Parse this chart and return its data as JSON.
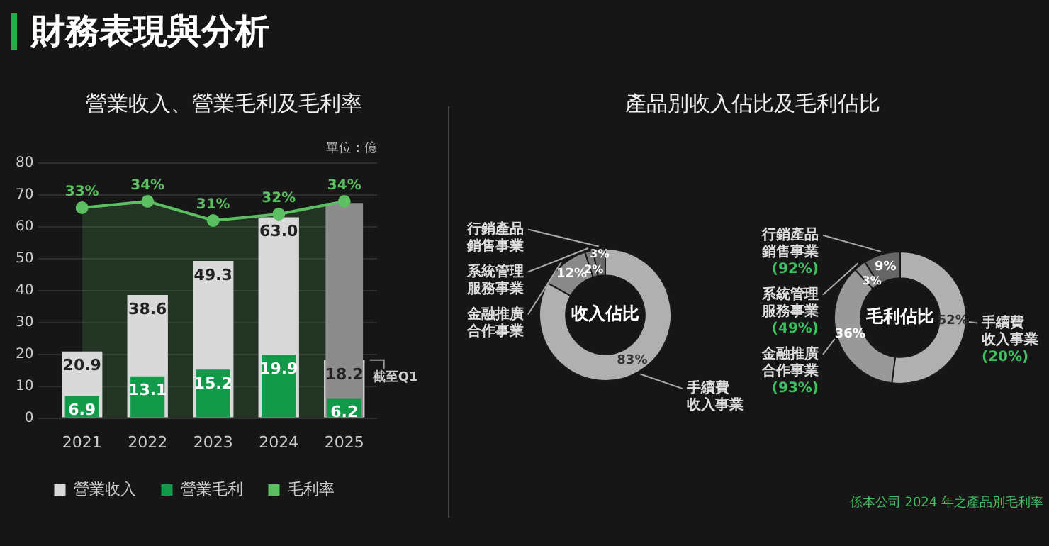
{
  "chart_data": [
    {
      "type": "other",
      "title": "財務表現與分析"
    },
    {
      "type": "bar",
      "title": "營業收入、營業毛利及毛利率",
      "categories": [
        "2021",
        "2022",
        "2023",
        "2024",
        "2025"
      ],
      "ylim": [
        0,
        80
      ],
      "yticks": [
        0,
        10,
        20,
        30,
        40,
        50,
        60,
        70,
        80
      ],
      "y2lim": [
        0,
        40
      ],
      "grid": "y",
      "legend": "bottom",
      "marker": "circle",
      "annotations": [
        "單位：億",
        {
          "text": "截至Q1",
          "x": "2025",
          "y": 18.2
        }
      ],
      "series": [
        {
          "name": "營業收入",
          "color": "#d9d9d9",
          "values": [
            20.9,
            38.6,
            49.3,
            63.0,
            18.2
          ],
          "value_labels": [
            "20.9",
            "38.6",
            "49.3",
            "63.0",
            "18.2"
          ]
        },
        {
          "color": "#8c8c8c",
          "values": [
            null,
            null,
            null,
            null,
            67.5
          ]
        },
        {
          "name": "營業毛利",
          "color": "#12994a",
          "values": [
            6.9,
            13.1,
            15.2,
            19.9,
            6.2
          ],
          "value_labels": [
            "6.9",
            "13.1",
            "15.2",
            "19.9",
            "6.2"
          ]
        },
        {
          "name": "毛利率",
          "type": "area",
          "axis": "y2",
          "color": "#5cbf62",
          "values": [
            33,
            34,
            31,
            32,
            34
          ],
          "value_labels": [
            "33%",
            "34%",
            "31%",
            "32%",
            "34%"
          ]
        }
      ]
    },
    {
      "type": "donut",
      "title": "產品別收入佔比及毛利佔比",
      "categories": [
        "手續費收入事業",
        "金融推廣合作事業",
        "系統管理服務事業",
        "行銷產品銷售事業"
      ],
      "values": [
        83,
        12,
        2,
        3
      ],
      "colors": [
        "#b0b0b0",
        "#8a8a8a",
        "#777777",
        "#666666"
      ],
      "value_labels": [
        "83%",
        "12%",
        "2%",
        "3%"
      ],
      "annotations": [
        "收入佔比"
      ]
    },
    {
      "type": "donut",
      "categories": [
        "手續費收入事業",
        "金融推廣合作事業",
        "系統管理服務事業",
        "行銷產品銷售事業"
      ],
      "values": [
        52,
        36,
        3,
        9
      ],
      "colors": [
        "#b0b0b0",
        "#999999",
        "#8a8a8a",
        "#666666"
      ],
      "value_labels": [
        "52%",
        "36%",
        "3%",
        "9%"
      ],
      "annotations": [
        "毛利佔比",
        {
          "text": "(20%)",
          "x": "手續費收入事業"
        },
        {
          "text": "(93%)",
          "x": "金融推廣合作事業"
        },
        {
          "text": "(49%)",
          "x": "系統管理服務事業"
        },
        {
          "text": "(92%)",
          "x": "行銷產品銷售事業"
        },
        "係本公司 2024 年之產品別毛利率"
      ]
    }
  ]
}
